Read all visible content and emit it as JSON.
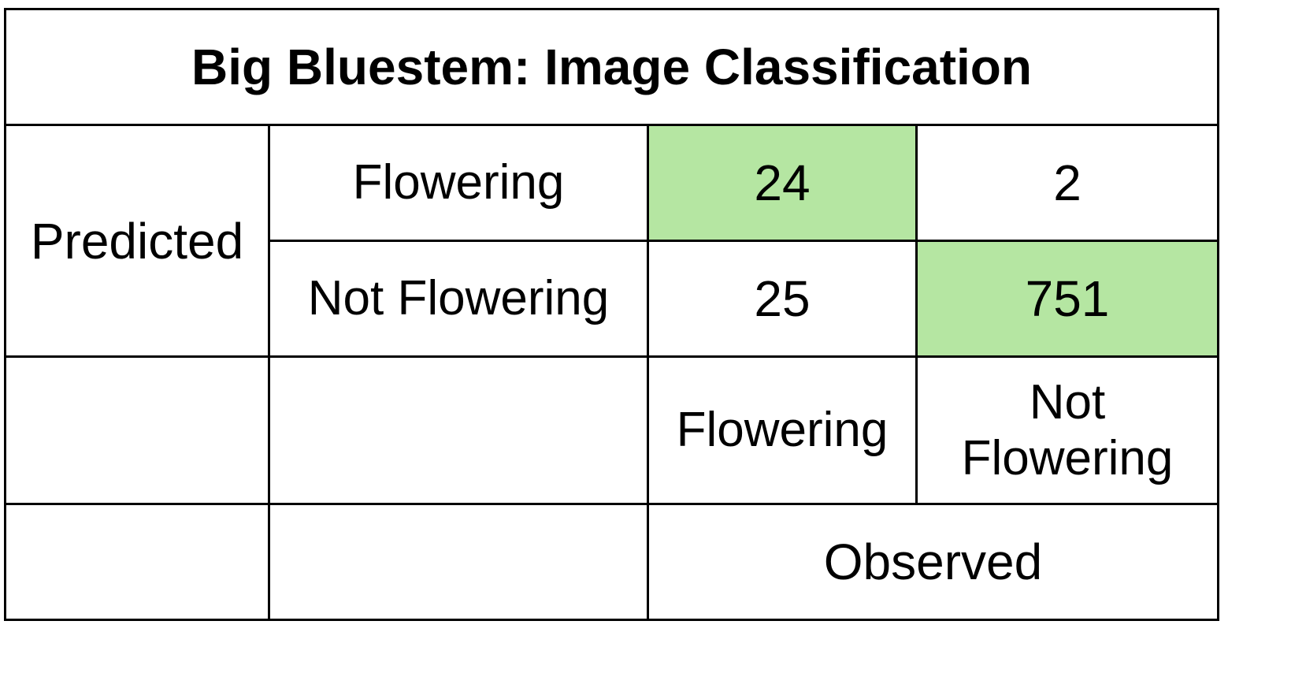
{
  "title": "Big Bluestem: Image Classification",
  "predicted_label": "Predicted",
  "observed_label": "Observed",
  "row_labels": [
    "Flowering",
    "Not Flowering"
  ],
  "col_labels": [
    "Flowering",
    "Not\nFlowering"
  ],
  "highlight_color": "#b5e6a2",
  "chart_data": {
    "type": "table",
    "title": "Big Bluestem: Image Classification",
    "row_axis_label": "Predicted",
    "col_axis_label": "Observed",
    "rows": [
      "Flowering",
      "Not Flowering"
    ],
    "columns": [
      "Flowering",
      "Not Flowering"
    ],
    "values": [
      [
        24,
        2
      ],
      [
        25,
        751
      ]
    ],
    "highlighted_cells": [
      [
        0,
        0
      ],
      [
        1,
        1
      ]
    ]
  }
}
